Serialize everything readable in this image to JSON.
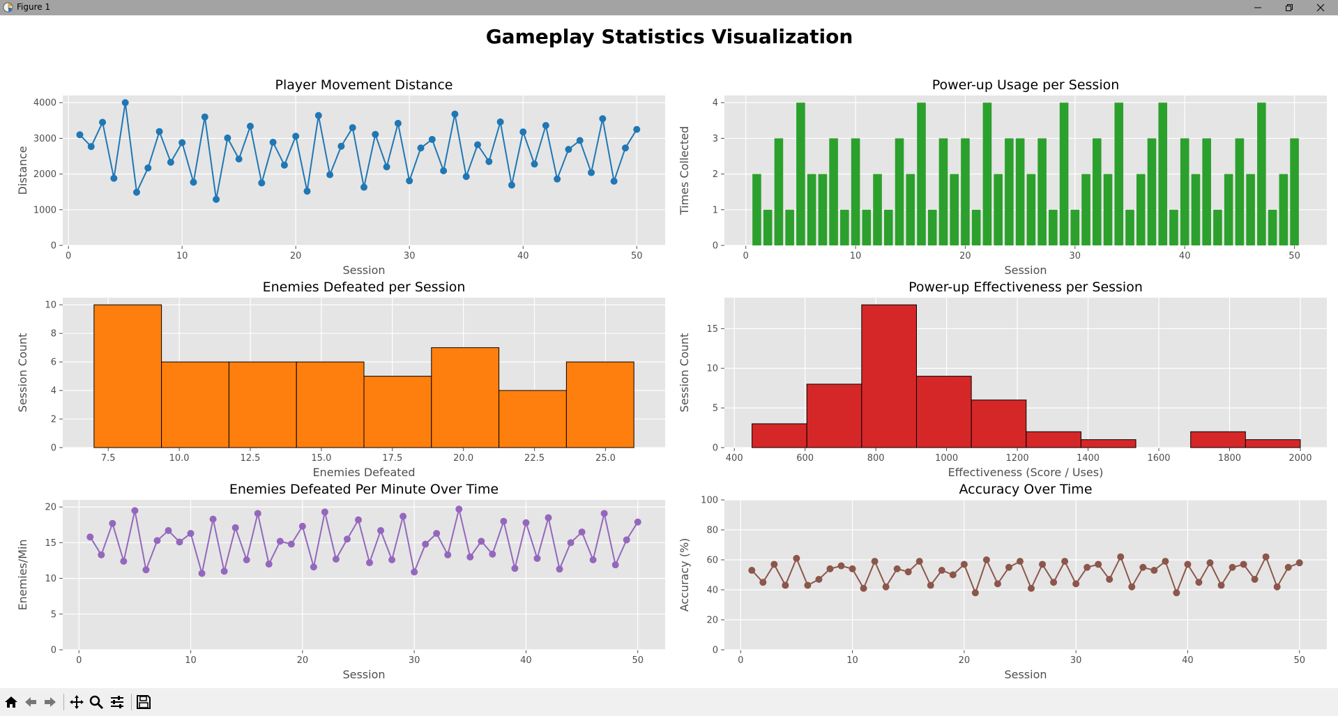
{
  "window": {
    "title": "Figure 1"
  },
  "figure": {
    "suptitle": "Gameplay Statistics Visualization"
  },
  "toolbar": {
    "buttons": [
      "home",
      "back",
      "forward",
      "pan",
      "zoom",
      "configure-subplots",
      "save"
    ]
  },
  "colors": {
    "axes_bg": "#e5e5e5",
    "grid": "#ffffff",
    "tick_text": "#4d4d4d",
    "label_text": "#4d4d4d",
    "blue": "#1f77b4",
    "green": "#2ca02c",
    "orange": "#ff7f0e",
    "red": "#d62728",
    "purple": "#9467bd",
    "brown": "#8c564b"
  },
  "chart_data": [
    {
      "type": "line",
      "title": "Player Movement Distance",
      "xlabel": "Session",
      "ylabel": "Distance",
      "xlim": [
        -0.5,
        52.5
      ],
      "ylim": [
        0,
        4200
      ],
      "xticks": [
        0,
        10,
        20,
        30,
        40,
        50
      ],
      "yticks": [
        0,
        1000,
        2000,
        3000,
        4000
      ],
      "color": "#1f77b4",
      "markers": true,
      "x": [
        1,
        2,
        3,
        4,
        5,
        6,
        7,
        8,
        9,
        10,
        11,
        12,
        13,
        14,
        15,
        16,
        17,
        18,
        19,
        20,
        21,
        22,
        23,
        24,
        25,
        26,
        27,
        28,
        29,
        30,
        31,
        32,
        33,
        34,
        35,
        36,
        37,
        38,
        39,
        40,
        41,
        42,
        43,
        44,
        45,
        46,
        47,
        48,
        49,
        50
      ],
      "y": [
        3100,
        2770,
        3450,
        1880,
        4000,
        1490,
        2170,
        3190,
        2330,
        2880,
        1770,
        3600,
        1290,
        3010,
        2420,
        3340,
        1750,
        2890,
        2250,
        3060,
        1520,
        3640,
        1980,
        2780,
        3300,
        1630,
        3110,
        2200,
        3420,
        1810,
        2730,
        2970,
        2090,
        3680,
        1930,
        2820,
        2350,
        3460,
        1690,
        3180,
        2280,
        3360,
        1860,
        2690,
        2940,
        2040,
        3550,
        1800,
        2730,
        3250
      ]
    },
    {
      "type": "bar",
      "title": "Power-up Usage per Session",
      "xlabel": "Session",
      "ylabel": "Times Collected",
      "xlim": [
        -1.95,
        52.95
      ],
      "ylim": [
        0,
        4.2
      ],
      "xticks": [
        0,
        10,
        20,
        30,
        40,
        50
      ],
      "yticks": [
        0,
        1,
        2,
        3,
        4
      ],
      "color": "#2ca02c",
      "x": [
        1,
        2,
        3,
        4,
        5,
        6,
        7,
        8,
        9,
        10,
        11,
        12,
        13,
        14,
        15,
        16,
        17,
        18,
        19,
        20,
        21,
        22,
        23,
        24,
        25,
        26,
        27,
        28,
        29,
        30,
        31,
        32,
        33,
        34,
        35,
        36,
        37,
        38,
        39,
        40,
        41,
        42,
        43,
        44,
        45,
        46,
        47,
        48,
        49,
        50
      ],
      "values": [
        2,
        1,
        3,
        1,
        4,
        2,
        2,
        3,
        1,
        3,
        1,
        2,
        1,
        3,
        2,
        4,
        1,
        3,
        2,
        3,
        1,
        4,
        2,
        3,
        3,
        2,
        3,
        1,
        4,
        1,
        2,
        3,
        2,
        4,
        1,
        2,
        3,
        4,
        1,
        3,
        2,
        3,
        1,
        2,
        3,
        2,
        4,
        1,
        2,
        3
      ]
    },
    {
      "type": "histogram",
      "title": "Enemies Defeated per Session",
      "xlabel": "Enemies Defeated",
      "ylabel": "Session Count",
      "xlim": [
        5.9,
        27.1
      ],
      "ylim": [
        0,
        10.5
      ],
      "xticks": [
        7.5,
        10.0,
        12.5,
        15.0,
        17.5,
        20.0,
        22.5,
        25.0
      ],
      "yticks": [
        0,
        2,
        4,
        6,
        8,
        10
      ],
      "color": "#ff7f0e",
      "bin_edges": [
        7.0,
        9.375,
        11.75,
        14.125,
        16.5,
        18.875,
        21.25,
        23.625,
        26.0
      ],
      "counts": [
        10,
        6,
        6,
        6,
        5,
        7,
        4,
        6
      ]
    },
    {
      "type": "histogram",
      "title": "Power-up Effectiveness per Session",
      "xlabel": "Effectiveness (Score / Uses)",
      "ylabel": "Session Count",
      "xlim": [
        372,
        2075
      ],
      "ylim": [
        0,
        18.9
      ],
      "xticks": [
        400,
        600,
        800,
        1000,
        1200,
        1400,
        1600,
        1800,
        2000
      ],
      "yticks": [
        0,
        5,
        10,
        15
      ],
      "color": "#d62728",
      "bin_edges": [
        450,
        605,
        760,
        915,
        1070,
        1225,
        1380,
        1535,
        1690,
        1845,
        2000
      ],
      "counts": [
        3,
        8,
        18,
        9,
        6,
        2,
        1,
        0,
        2,
        1
      ]
    },
    {
      "type": "line",
      "title": "Enemies Defeated Per Minute Over Time",
      "xlabel": "Session",
      "ylabel": "Enemies/Min",
      "xlim": [
        -1.45,
        52.45
      ],
      "ylim": [
        0,
        21
      ],
      "xticks": [
        0,
        10,
        20,
        30,
        40,
        50
      ],
      "yticks": [
        0,
        5,
        10,
        15,
        20
      ],
      "color": "#9467bd",
      "markers": true,
      "x": [
        1,
        2,
        3,
        4,
        5,
        6,
        7,
        8,
        9,
        10,
        11,
        12,
        13,
        14,
        15,
        16,
        17,
        18,
        19,
        20,
        21,
        22,
        23,
        24,
        25,
        26,
        27,
        28,
        29,
        30,
        31,
        32,
        33,
        34,
        35,
        36,
        37,
        38,
        39,
        40,
        41,
        42,
        43,
        44,
        45,
        46,
        47,
        48,
        49,
        50
      ],
      "y": [
        15.8,
        13.3,
        17.7,
        12.4,
        19.5,
        11.2,
        15.3,
        16.7,
        15.1,
        16.3,
        10.7,
        18.3,
        11.0,
        17.1,
        12.6,
        19.1,
        12.0,
        15.2,
        14.8,
        17.3,
        11.6,
        19.3,
        12.7,
        15.5,
        18.2,
        12.2,
        16.7,
        12.6,
        18.7,
        10.9,
        14.8,
        16.3,
        13.3,
        19.7,
        13.0,
        15.2,
        13.4,
        18.0,
        11.4,
        17.8,
        12.8,
        18.5,
        11.3,
        15.0,
        16.5,
        12.6,
        19.1,
        11.9,
        15.4,
        17.9
      ]
    },
    {
      "type": "line",
      "title": "Accuracy Over Time",
      "xlabel": "Session",
      "ylabel": "Accuracy (%)",
      "xlim": [
        -1.45,
        52.45
      ],
      "ylim": [
        0,
        100
      ],
      "xticks": [
        0,
        10,
        20,
        30,
        40,
        50
      ],
      "yticks": [
        0,
        20,
        40,
        60,
        80,
        100
      ],
      "color": "#8c564b",
      "markers": true,
      "x": [
        1,
        2,
        3,
        4,
        5,
        6,
        7,
        8,
        9,
        10,
        11,
        12,
        13,
        14,
        15,
        16,
        17,
        18,
        19,
        20,
        21,
        22,
        23,
        24,
        25,
        26,
        27,
        28,
        29,
        30,
        31,
        32,
        33,
        34,
        35,
        36,
        37,
        38,
        39,
        40,
        41,
        42,
        43,
        44,
        45,
        46,
        47,
        48,
        49,
        50
      ],
      "y": [
        53,
        45,
        57,
        43,
        61,
        43,
        47,
        54,
        56,
        54,
        41,
        59,
        42,
        54,
        52,
        59,
        43,
        53,
        50,
        57,
        38,
        60,
        44,
        55,
        59,
        41,
        57,
        45,
        59,
        44,
        55,
        57,
        47,
        62,
        42,
        55,
        53,
        59,
        38,
        57,
        45,
        58,
        43,
        55,
        57,
        47,
        62,
        42,
        55,
        58
      ]
    }
  ]
}
